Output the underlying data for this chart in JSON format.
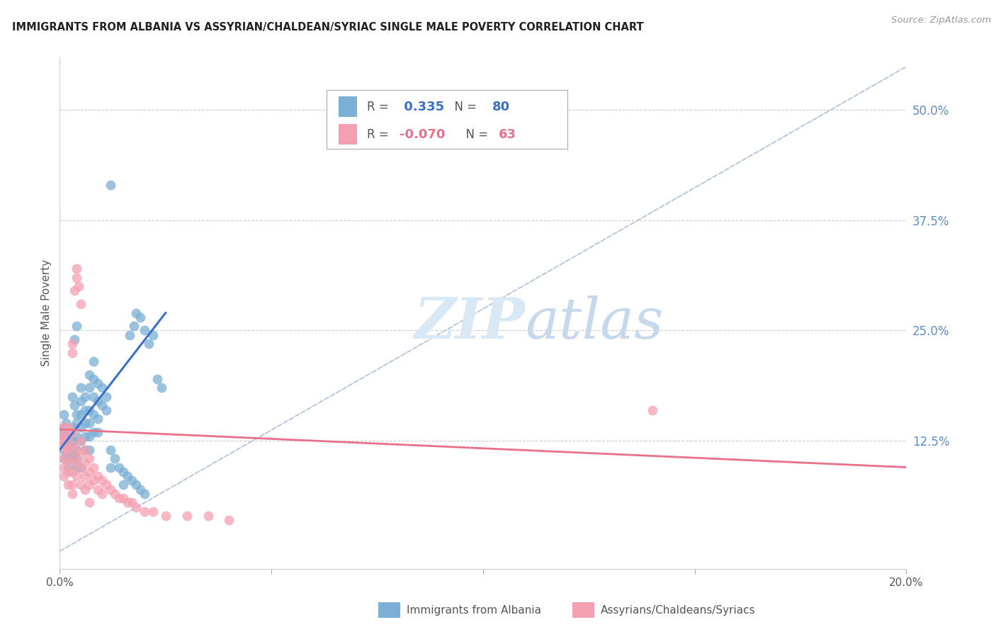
{
  "title": "IMMIGRANTS FROM ALBANIA VS ASSYRIAN/CHALDEAN/SYRIAC SINGLE MALE POVERTY CORRELATION CHART",
  "source": "Source: ZipAtlas.com",
  "ylabel": "Single Male Poverty",
  "ytick_labels": [
    "50.0%",
    "37.5%",
    "25.0%",
    "12.5%"
  ],
  "ytick_values": [
    0.5,
    0.375,
    0.25,
    0.125
  ],
  "xlim": [
    0.0,
    0.2
  ],
  "ylim": [
    -0.02,
    0.56
  ],
  "legend_blue_r": "0.335",
  "legend_blue_n": "80",
  "legend_pink_r": "-0.070",
  "legend_pink_n": "63",
  "blue_color": "#7BAFD4",
  "pink_color": "#F4A0B0",
  "blue_line_color": "#3B6FC9",
  "pink_line_color": "#E8708A",
  "diag_line_color": "#B0C4DE",
  "watermark_color": "#D8E8F5",
  "legend_label_blue": "Immigrants from Albania",
  "legend_label_pink": "Assyrians/Chaldeans/Syriacs",
  "blue_scatter": [
    [
      0.0008,
      0.135
    ],
    [
      0.001,
      0.14
    ],
    [
      0.001,
      0.155
    ],
    [
      0.001,
      0.125
    ],
    [
      0.001,
      0.115
    ],
    [
      0.001,
      0.105
    ],
    [
      0.0012,
      0.13
    ],
    [
      0.0015,
      0.145
    ],
    [
      0.002,
      0.13
    ],
    [
      0.002,
      0.12
    ],
    [
      0.002,
      0.115
    ],
    [
      0.002,
      0.105
    ],
    [
      0.002,
      0.095
    ],
    [
      0.003,
      0.14
    ],
    [
      0.003,
      0.125
    ],
    [
      0.003,
      0.12
    ],
    [
      0.003,
      0.11
    ],
    [
      0.003,
      0.105
    ],
    [
      0.003,
      0.175
    ],
    [
      0.0035,
      0.165
    ],
    [
      0.004,
      0.155
    ],
    [
      0.004,
      0.145
    ],
    [
      0.004,
      0.13
    ],
    [
      0.004,
      0.115
    ],
    [
      0.004,
      0.105
    ],
    [
      0.004,
      0.095
    ],
    [
      0.005,
      0.185
    ],
    [
      0.005,
      0.17
    ],
    [
      0.005,
      0.155
    ],
    [
      0.005,
      0.14
    ],
    [
      0.005,
      0.125
    ],
    [
      0.005,
      0.095
    ],
    [
      0.006,
      0.175
    ],
    [
      0.006,
      0.16
    ],
    [
      0.006,
      0.145
    ],
    [
      0.006,
      0.13
    ],
    [
      0.006,
      0.115
    ],
    [
      0.007,
      0.2
    ],
    [
      0.007,
      0.185
    ],
    [
      0.007,
      0.16
    ],
    [
      0.007,
      0.145
    ],
    [
      0.007,
      0.13
    ],
    [
      0.007,
      0.115
    ],
    [
      0.008,
      0.215
    ],
    [
      0.008,
      0.195
    ],
    [
      0.008,
      0.175
    ],
    [
      0.008,
      0.155
    ],
    [
      0.008,
      0.135
    ],
    [
      0.009,
      0.19
    ],
    [
      0.009,
      0.17
    ],
    [
      0.009,
      0.15
    ],
    [
      0.009,
      0.135
    ],
    [
      0.01,
      0.185
    ],
    [
      0.01,
      0.165
    ],
    [
      0.011,
      0.175
    ],
    [
      0.011,
      0.16
    ],
    [
      0.012,
      0.095
    ],
    [
      0.012,
      0.115
    ],
    [
      0.013,
      0.105
    ],
    [
      0.014,
      0.095
    ],
    [
      0.015,
      0.09
    ],
    [
      0.015,
      0.075
    ],
    [
      0.016,
      0.085
    ],
    [
      0.017,
      0.08
    ],
    [
      0.018,
      0.075
    ],
    [
      0.019,
      0.07
    ],
    [
      0.02,
      0.065
    ],
    [
      0.0165,
      0.245
    ],
    [
      0.0175,
      0.255
    ],
    [
      0.018,
      0.27
    ],
    [
      0.019,
      0.265
    ],
    [
      0.02,
      0.25
    ],
    [
      0.021,
      0.235
    ],
    [
      0.022,
      0.245
    ],
    [
      0.012,
      0.415
    ],
    [
      0.0035,
      0.24
    ],
    [
      0.004,
      0.255
    ],
    [
      0.023,
      0.195
    ],
    [
      0.024,
      0.185
    ]
  ],
  "pink_scatter": [
    [
      0.0005,
      0.13
    ],
    [
      0.0008,
      0.125
    ],
    [
      0.001,
      0.14
    ],
    [
      0.001,
      0.12
    ],
    [
      0.001,
      0.105
    ],
    [
      0.001,
      0.095
    ],
    [
      0.001,
      0.085
    ],
    [
      0.0015,
      0.115
    ],
    [
      0.002,
      0.14
    ],
    [
      0.002,
      0.13
    ],
    [
      0.002,
      0.115
    ],
    [
      0.002,
      0.1
    ],
    [
      0.002,
      0.09
    ],
    [
      0.002,
      0.075
    ],
    [
      0.003,
      0.135
    ],
    [
      0.003,
      0.12
    ],
    [
      0.003,
      0.105
    ],
    [
      0.003,
      0.09
    ],
    [
      0.003,
      0.075
    ],
    [
      0.003,
      0.065
    ],
    [
      0.0035,
      0.295
    ],
    [
      0.004,
      0.31
    ],
    [
      0.004,
      0.32
    ],
    [
      0.0045,
      0.3
    ],
    [
      0.005,
      0.28
    ],
    [
      0.004,
      0.115
    ],
    [
      0.004,
      0.1
    ],
    [
      0.004,
      0.085
    ],
    [
      0.005,
      0.125
    ],
    [
      0.005,
      0.11
    ],
    [
      0.005,
      0.095
    ],
    [
      0.005,
      0.075
    ],
    [
      0.006,
      0.115
    ],
    [
      0.006,
      0.1
    ],
    [
      0.006,
      0.085
    ],
    [
      0.006,
      0.07
    ],
    [
      0.007,
      0.105
    ],
    [
      0.007,
      0.09
    ],
    [
      0.007,
      0.075
    ],
    [
      0.007,
      0.055
    ],
    [
      0.008,
      0.095
    ],
    [
      0.008,
      0.08
    ],
    [
      0.009,
      0.085
    ],
    [
      0.009,
      0.07
    ],
    [
      0.01,
      0.08
    ],
    [
      0.01,
      0.065
    ],
    [
      0.011,
      0.075
    ],
    [
      0.012,
      0.07
    ],
    [
      0.013,
      0.065
    ],
    [
      0.014,
      0.06
    ],
    [
      0.015,
      0.06
    ],
    [
      0.016,
      0.055
    ],
    [
      0.017,
      0.055
    ],
    [
      0.018,
      0.05
    ],
    [
      0.02,
      0.045
    ],
    [
      0.022,
      0.045
    ],
    [
      0.025,
      0.04
    ],
    [
      0.03,
      0.04
    ],
    [
      0.035,
      0.04
    ],
    [
      0.04,
      0.035
    ],
    [
      0.003,
      0.225
    ],
    [
      0.003,
      0.235
    ],
    [
      0.14,
      0.16
    ]
  ],
  "blue_line": {
    "x0": 0.0,
    "y0": 0.115,
    "x1": 0.025,
    "y1": 0.27
  },
  "pink_line": {
    "x0": 0.0,
    "y0": 0.138,
    "x1": 0.2,
    "y1": 0.095
  },
  "diag_line": {
    "x0": 0.0,
    "y0": 0.0,
    "x1": 0.204,
    "y1": 0.56
  }
}
